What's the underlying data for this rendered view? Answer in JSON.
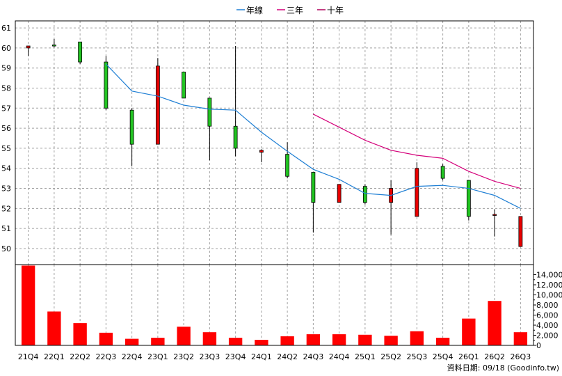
{
  "colors": {
    "up": "#22c422",
    "down": "#e80000",
    "wick": "#000000",
    "volume": "#ff0000",
    "ma_year": "#1f7fd4",
    "ma_3y": "#d4007a",
    "ma_10y": "#b0005a",
    "grid": "#a0a0a0"
  },
  "legend": [
    {
      "label": "年線",
      "color": "#1f7fd4"
    },
    {
      "label": "三年",
      "color": "#d4007a"
    },
    {
      "label": "十年",
      "color": "#b0005a"
    }
  ],
  "footer": {
    "source": "資料日期: 09/18 (Goodinfo.tw)"
  },
  "chart_data": {
    "type": "candlestick",
    "categories": [
      "21Q4",
      "22Q1",
      "22Q2",
      "22Q3",
      "22Q4",
      "23Q1",
      "23Q2",
      "23Q3",
      "23Q4",
      "24Q1",
      "24Q2",
      "24Q3",
      "24Q4",
      "25Q1",
      "25Q2",
      "25Q3",
      "25Q4",
      "26Q1",
      "26Q2",
      "26Q3"
    ],
    "price_yticks": [
      50,
      51,
      52,
      53,
      54,
      55,
      56,
      57,
      58,
      59,
      60,
      61
    ],
    "price_ylim": [
      49.2,
      61.35
    ],
    "ohlc": [
      {
        "o": 60.1,
        "h": 60.1,
        "l": 59.6,
        "c": 60.0
      },
      {
        "o": 60.15,
        "h": 60.45,
        "l": 60.05,
        "c": 60.15
      },
      {
        "o": 59.3,
        "h": 60.3,
        "l": 59.2,
        "c": 60.3
      },
      {
        "o": 57.0,
        "h": 59.6,
        "l": 56.9,
        "c": 59.3
      },
      {
        "o": 55.2,
        "h": 57.0,
        "l": 54.1,
        "c": 56.9
      },
      {
        "o": 59.1,
        "h": 59.5,
        "l": 55.2,
        "c": 55.2
      },
      {
        "o": 57.5,
        "h": 58.8,
        "l": 57.5,
        "c": 58.8
      },
      {
        "o": 56.1,
        "h": 57.5,
        "l": 54.4,
        "c": 57.5
      },
      {
        "o": 55.0,
        "h": 60.1,
        "l": 54.6,
        "c": 56.1
      },
      {
        "o": 54.9,
        "h": 54.95,
        "l": 54.3,
        "c": 54.8
      },
      {
        "o": 53.6,
        "h": 55.3,
        "l": 53.5,
        "c": 54.7
      },
      {
        "o": 52.3,
        "h": 53.8,
        "l": 50.8,
        "c": 53.8
      },
      {
        "o": 53.2,
        "h": 53.2,
        "l": 52.3,
        "c": 52.3
      },
      {
        "o": 52.3,
        "h": 53.2,
        "l": 52.2,
        "c": 53.1
      },
      {
        "o": 53.0,
        "h": 53.4,
        "l": 50.7,
        "c": 52.3
      },
      {
        "o": 54.0,
        "h": 54.3,
        "l": 51.6,
        "c": 51.6
      },
      {
        "o": 53.5,
        "h": 54.2,
        "l": 53.4,
        "c": 54.1
      },
      {
        "o": 51.6,
        "h": 53.4,
        "l": 51.4,
        "c": 53.4
      },
      {
        "o": 51.7,
        "h": 51.95,
        "l": 50.6,
        "c": 51.65
      },
      {
        "o": 51.6,
        "h": 51.6,
        "l": 50.1,
        "c": 50.1
      }
    ],
    "ma_year": [
      null,
      null,
      null,
      59.2,
      57.85,
      57.6,
      57.15,
      56.95,
      56.9,
      55.8,
      54.85,
      53.95,
      53.45,
      52.75,
      52.65,
      53.1,
      53.15,
      53.0,
      52.65,
      52.0
    ],
    "ma_3y": [
      null,
      null,
      null,
      null,
      null,
      null,
      null,
      null,
      null,
      null,
      null,
      56.7,
      56.05,
      55.4,
      54.9,
      54.65,
      54.5,
      53.85,
      53.35,
      53.0
    ],
    "volume": [
      15800,
      6700,
      4400,
      2500,
      1300,
      1500,
      3700,
      2600,
      1500,
      1100,
      1800,
      2200,
      2200,
      2100,
      1900,
      2800,
      1500,
      5300,
      8800,
      2600
    ],
    "volume_yticks": [
      0,
      2000,
      4000,
      6000,
      8000,
      10000,
      12000,
      14000
    ],
    "volume_ytick_labels": [
      "0",
      "2,000",
      "4,000",
      "6,000",
      "8,000",
      "10,000",
      "12,000",
      "14,000"
    ],
    "volume_ylim": [
      0,
      16000
    ]
  }
}
